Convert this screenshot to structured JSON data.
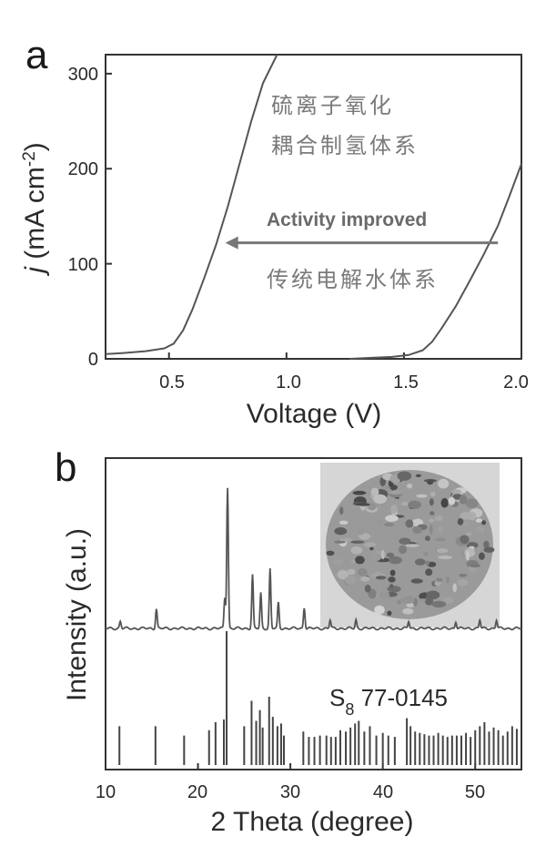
{
  "chart_data": [
    {
      "panel": "a",
      "type": "line",
      "xlabel": "Voltage (V)",
      "ylabel_parts": {
        "j": "j",
        "units": " (mA cm",
        "sup": "-2",
        "close": ")"
      },
      "xlim": [
        0.23,
        2.0
      ],
      "ylim": [
        0,
        320
      ],
      "xticks": [
        0.5,
        1.0,
        1.5,
        2.0
      ],
      "xtick_labels": [
        "0.5",
        "1.0",
        "1.5",
        "2.0"
      ],
      "yticks": [
        0,
        100,
        200,
        300
      ],
      "ytick_labels": [
        "0",
        "100",
        "200",
        "300"
      ],
      "series": [
        {
          "name": "硫离子氧化耦合制氢体系",
          "x": [
            0.23,
            0.3,
            0.4,
            0.48,
            0.52,
            0.56,
            0.6,
            0.65,
            0.7,
            0.75,
            0.8,
            0.85,
            0.9,
            0.96
          ],
          "y": [
            5,
            6,
            8,
            11,
            16,
            30,
            52,
            85,
            120,
            160,
            205,
            250,
            290,
            320
          ]
        },
        {
          "name": "传统电解水体系",
          "x": [
            1.27,
            1.35,
            1.45,
            1.52,
            1.58,
            1.62,
            1.66,
            1.72,
            1.78,
            1.84,
            1.9,
            1.95,
            2.0
          ],
          "y": [
            0,
            1,
            2,
            4,
            9,
            18,
            32,
            55,
            82,
            110,
            140,
            172,
            205
          ]
        }
      ],
      "annotations": {
        "upper_line1": "硫离子氧化",
        "upper_line2": "耦合制氢体系",
        "arrow_text": "Activity improved",
        "lower_text": "传统电解水体系"
      },
      "arrow": {
        "from_x": 1.9,
        "to_x": 0.74,
        "y": 122
      }
    },
    {
      "panel": "b",
      "type": "bar",
      "xlabel": "2 Theta (degree)",
      "ylabel": "Intensity (a.u.)",
      "xlim": [
        10,
        55
      ],
      "xticks": [
        10,
        20,
        30,
        40,
        50
      ],
      "xtick_labels": [
        "10",
        "20",
        "30",
        "40",
        "50"
      ],
      "reference_label_main": "S",
      "reference_label_sub": "8",
      "reference_label_rest": " 77-0145",
      "pattern": {
        "x": [
          11.6,
          15.5,
          22.9,
          23.2,
          25.9,
          26.8,
          27.8,
          28.7,
          31.5,
          34.3,
          37.1,
          42.8,
          47.9,
          50.5,
          52.3
        ],
        "y": [
          5,
          14,
          22,
          100,
          38,
          25,
          42,
          18,
          15,
          6,
          6,
          5,
          5,
          6,
          6
        ]
      },
      "reference_lines": {
        "x": [
          11.5,
          15.4,
          18.5,
          21.2,
          21.9,
          22.8,
          23.1,
          25.0,
          25.8,
          26.3,
          26.7,
          27.0,
          27.7,
          28.1,
          28.6,
          29.0,
          29.3,
          31.4,
          32.0,
          32.6,
          33.2,
          33.9,
          34.4,
          34.9,
          35.4,
          36.0,
          36.5,
          37.0,
          37.4,
          38.0,
          38.6,
          39.3,
          40.0,
          40.6,
          41.3,
          42.6,
          43.0,
          43.5,
          44.0,
          44.5,
          45.0,
          45.5,
          46.0,
          46.5,
          47.0,
          47.5,
          48.0,
          48.5,
          49.0,
          49.5,
          50.0,
          50.5,
          51.0,
          51.5,
          52.0,
          52.5,
          53.0,
          53.5,
          54.0,
          54.5
        ],
        "y": [
          29,
          29,
          22,
          26,
          32,
          34,
          100,
          29,
          48,
          33,
          41,
          28,
          51,
          36,
          29,
          31,
          22,
          25,
          21,
          21,
          22,
          22,
          21,
          21,
          26,
          25,
          28,
          31,
          33,
          25,
          29,
          22,
          24,
          22,
          21,
          35,
          29,
          25,
          24,
          23,
          22,
          22,
          24,
          22,
          21,
          22,
          22,
          22,
          24,
          21,
          26,
          29,
          32,
          25,
          28,
          26,
          22,
          25,
          29,
          27
        ]
      }
    }
  ],
  "panel_labels": {
    "a": "a",
    "b": "b"
  }
}
